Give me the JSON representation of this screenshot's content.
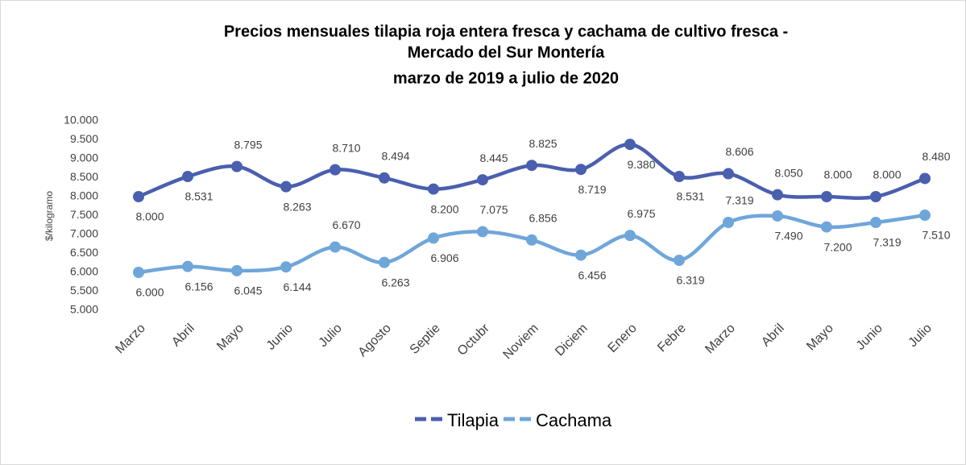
{
  "chart_data": {
    "type": "line",
    "title": [
      "Precios mensuales tilapia roja entera fresca y cachama de cultivo fresca -",
      "Mercado del Sur Montería",
      "marzo de 2019 a julio de 2020"
    ],
    "y_label": "$/kilogramo",
    "categories": [
      "Marzo",
      "Abril",
      "Mayo",
      "Junio",
      "Julio",
      "Agosto",
      "Septie",
      "Octubr",
      "Noviem",
      "Diciem",
      "Enero",
      "Febre",
      "Marzo",
      "Abril",
      "Mayo",
      "Junio",
      "Julio"
    ],
    "series": [
      {
        "name": "Tilapia",
        "color": "#4a5fae",
        "values": [
          8000,
          8531,
          8795,
          8263,
          8710,
          8494,
          8200,
          8445,
          8825,
          8719,
          9380,
          8531,
          8606,
          8050,
          8000,
          8000,
          8480
        ],
        "value_labels": [
          "8.000",
          "8.531",
          "8.795",
          "8.263",
          "8.710",
          "8.494",
          "8.200",
          "8.445",
          "8.825",
          "8.719",
          "9.380",
          "8.531",
          "8.606",
          "8.050",
          "8.000",
          "8.000",
          "8.480"
        ]
      },
      {
        "name": "Cachama",
        "color": "#6fa6da",
        "values": [
          6000,
          6156,
          6045,
          6144,
          6670,
          6263,
          6906,
          7075,
          6856,
          6456,
          6975,
          6319,
          7319,
          7490,
          7200,
          7319,
          7510
        ],
        "value_labels": [
          "6.000",
          "6.156",
          "6.045",
          "6.144",
          "6.670",
          "6.263",
          "6.906",
          "7.075",
          "6.856",
          "6.456",
          "6.975",
          "6.319",
          "7.319",
          "7.490",
          "7.200",
          "7.319",
          "7.510"
        ]
      }
    ],
    "ylim": [
      5000,
      10000
    ],
    "yticks": [
      {
        "value": 5000,
        "label": "5.000"
      },
      {
        "value": 5500,
        "label": "5.500"
      },
      {
        "value": 6000,
        "label": "6.000"
      },
      {
        "value": 6500,
        "label": "6.500"
      },
      {
        "value": 7000,
        "label": "7.000"
      },
      {
        "value": 7500,
        "label": "7.500"
      },
      {
        "value": 8000,
        "label": "8.000"
      },
      {
        "value": 8500,
        "label": "8.500"
      },
      {
        "value": 9000,
        "label": "9.000"
      },
      {
        "value": 9500,
        "label": "9.500"
      },
      {
        "value": 10000,
        "label": "10.000"
      }
    ],
    "grid": false,
    "legend": "bottom"
  }
}
